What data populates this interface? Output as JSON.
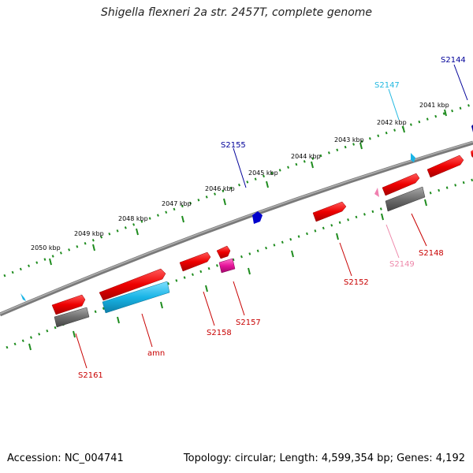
{
  "title": "Shigella flexneri 2a str. 2457T, complete genome",
  "footer": {
    "accession": "Accession: NC_004741",
    "summary": "Topology: circular; Length: 4,599,354 bp; Genes: 4,192"
  },
  "colors": {
    "backbone": "#808080",
    "tick_green": "#1e8c1e",
    "gene_red": "#e8001a",
    "gene_cyan": "#19b4e6",
    "gene_pink": "#e6149b",
    "gene_gray": "#6e6e6e",
    "label_dark_red": "#c80000",
    "label_navy": "#000099",
    "label_cyan": "#22b8e0",
    "label_pink": "#ee88aa"
  },
  "kbp_labels": [
    "2041 kbp",
    "2042 kbp",
    "2043 kbp",
    "2044 kbp",
    "2045 kbp",
    "2046 kbp",
    "2047 kbp",
    "2048 kbp",
    "2049 kbp",
    "2050 kbp"
  ],
  "gene_labels": {
    "s2144": "S2144",
    "s2147": "S2147",
    "s2155": "S2155",
    "s2148": "S2148",
    "s2149": "S2149",
    "s2152": "S2152",
    "s2157": "S2157",
    "s2158": "S2158",
    "amn": "amn",
    "s2161": "S2161"
  }
}
